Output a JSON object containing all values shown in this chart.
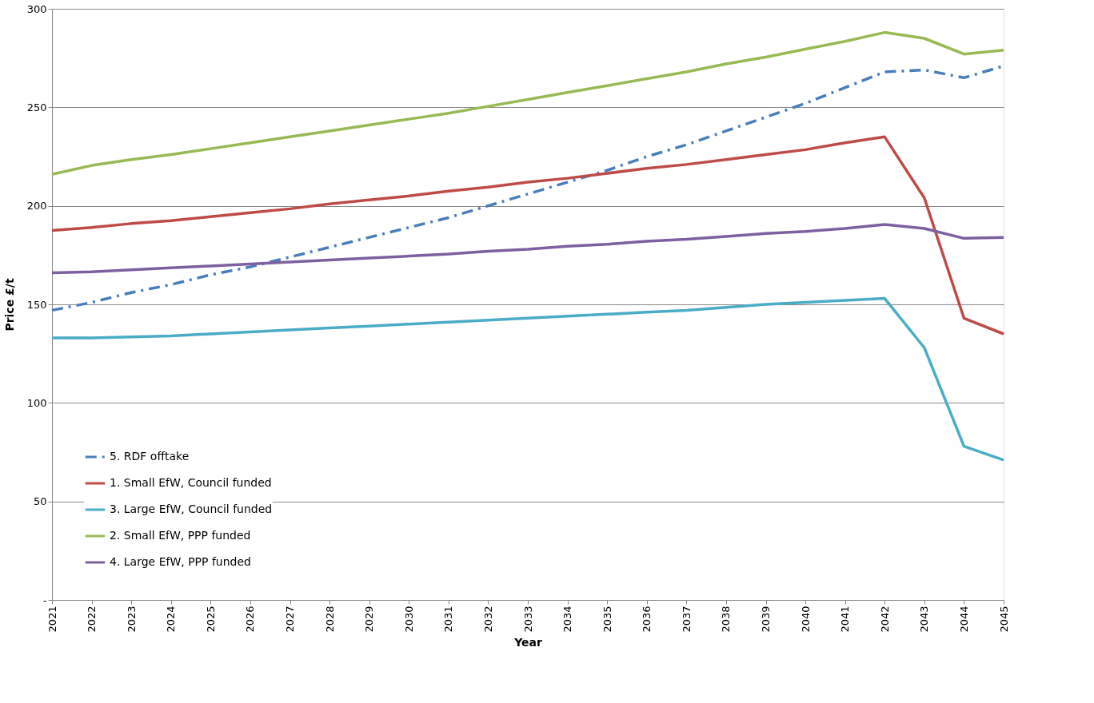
{
  "chart_data": {
    "type": "line",
    "xlabel": "Year",
    "ylabel": "Price £/t",
    "x": [
      2021,
      2022,
      2023,
      2024,
      2025,
      2026,
      2027,
      2028,
      2029,
      2030,
      2031,
      2032,
      2033,
      2034,
      2035,
      2036,
      2037,
      2038,
      2039,
      2040,
      2041,
      2042,
      2043,
      2044,
      2045
    ],
    "xlim": [
      2021,
      2045
    ],
    "xticks": [
      2021,
      2022,
      2023,
      2024,
      2025,
      2026,
      2027,
      2028,
      2029,
      2030,
      2031,
      2032,
      2033,
      2034,
      2035,
      2036,
      2037,
      2038,
      2039,
      2040,
      2041,
      2042,
      2043,
      2044,
      2045
    ],
    "ylim": [
      0,
      300
    ],
    "yticks": [
      {
        "value": 0,
        "label": "-"
      },
      50,
      100,
      150,
      200,
      250,
      300
    ],
    "grid": "y",
    "legend": "bottom left",
    "marker": "none",
    "series": [
      {
        "name": "5. RDF offtake",
        "color": "#4a7ebb",
        "line_style": "dashed",
        "values": [
          147,
          151,
          156,
          160,
          165,
          169,
          174,
          179,
          184,
          189,
          194,
          200,
          206,
          212,
          218,
          225,
          231,
          238,
          245,
          252,
          260,
          268,
          269,
          265,
          271
        ]
      },
      {
        "name": "1. Small EfW, Council funded",
        "color": "#be4b48",
        "line_style": "solid",
        "values": [
          187.5,
          189,
          191,
          192.5,
          194.5,
          196.5,
          198.5,
          201,
          203,
          205,
          207.5,
          209.5,
          212,
          214,
          216.5,
          219,
          221,
          223.5,
          226,
          228.5,
          232,
          235,
          204,
          143,
          135
        ]
      },
      {
        "name": "3. Large EfW, Council funded",
        "color": "#4bacc6",
        "line_style": "solid",
        "values": [
          133,
          133,
          133.5,
          134,
          135,
          136,
          137,
          138,
          139,
          140,
          141,
          142,
          143,
          144,
          145,
          146,
          147,
          148.5,
          150,
          151,
          152,
          153,
          128,
          78,
          71
        ]
      },
      {
        "name": "2. Small EfW, PPP funded",
        "color": "#98b954",
        "line_style": "solid",
        "values": [
          216,
          220.5,
          223.5,
          226,
          229,
          232,
          235,
          238,
          241,
          244,
          247,
          250.5,
          254,
          257.5,
          261,
          264.5,
          268,
          272,
          275.5,
          279.5,
          283.5,
          288,
          285,
          277,
          279
        ]
      },
      {
        "name": "4. Large EfW, PPP funded",
        "color": "#7d60a0",
        "line_style": "solid",
        "values": [
          166,
          166.5,
          167.5,
          168.5,
          169.5,
          170.5,
          171.5,
          172.5,
          173.5,
          174.5,
          175.5,
          177,
          178,
          179.5,
          180.5,
          182,
          183,
          184.5,
          186,
          187,
          188.5,
          190.5,
          188.5,
          183.5,
          184
        ]
      }
    ]
  }
}
